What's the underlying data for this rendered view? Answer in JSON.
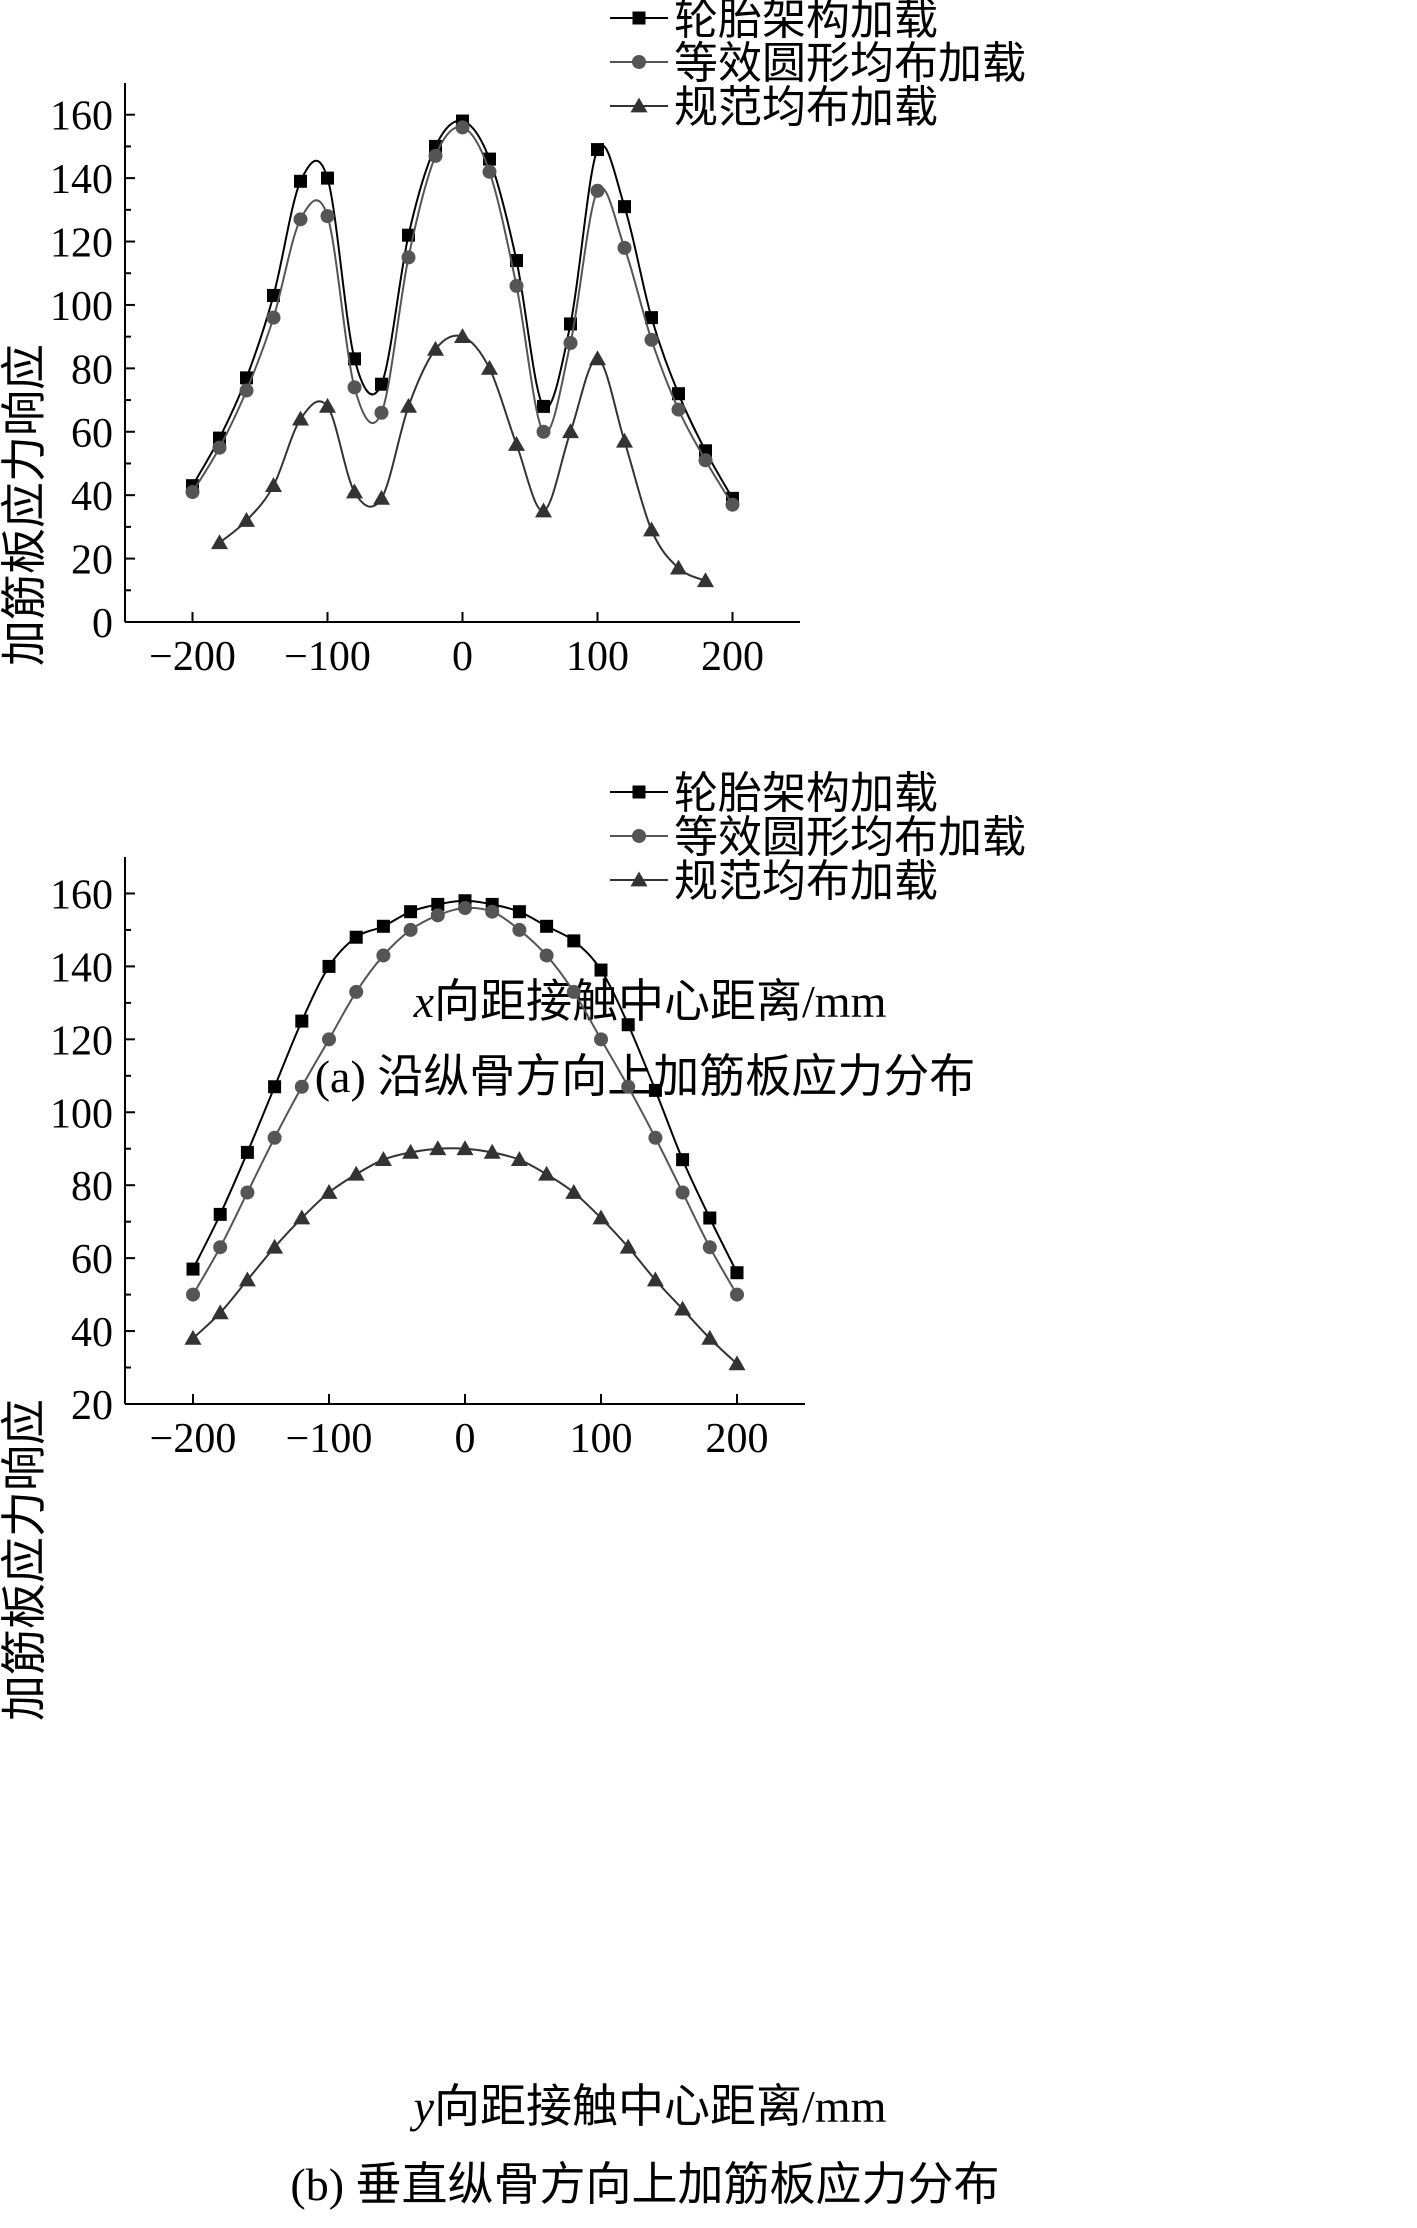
{
  "chart_data": [
    {
      "type": "line",
      "xlabel_var": "x",
      "xlabel_text": "向距接触中心距离/mm",
      "ylabel": "加筋板应力响应",
      "caption": "(a) 沿纵骨方向上加筋板应力分布",
      "xlim": [
        -250,
        250
      ],
      "ylim": [
        0,
        170
      ],
      "xticks": [
        -200,
        -100,
        0,
        100,
        200
      ],
      "yticks": [
        0,
        20,
        40,
        60,
        80,
        100,
        120,
        140,
        160
      ],
      "xtick_labels": [
        "−200",
        "−100",
        "0",
        "100",
        "200"
      ],
      "ytick_labels": [
        "0",
        "20",
        "40",
        "60",
        "80",
        "100",
        "120",
        "140",
        "160"
      ],
      "grid": false,
      "legend_position": "top-right",
      "series": [
        {
          "name": "轮胎架构加载",
          "marker": "square",
          "color": "#000000",
          "x": [
            -200,
            -180,
            -160,
            -140,
            -120,
            -100,
            -80,
            -60,
            -40,
            -20,
            0,
            20,
            40,
            60,
            80,
            100,
            120,
            140,
            160,
            180,
            200
          ],
          "y": [
            43,
            58,
            77,
            103,
            139,
            140,
            83,
            75,
            122,
            150,
            158,
            146,
            114,
            68,
            94,
            149,
            131,
            96,
            72,
            54,
            39
          ]
        },
        {
          "name": "等效圆形均布加载",
          "marker": "circle",
          "color": "#555555",
          "x": [
            -200,
            -180,
            -160,
            -140,
            -120,
            -100,
            -80,
            -60,
            -40,
            -20,
            0,
            20,
            40,
            60,
            80,
            100,
            120,
            140,
            160,
            180,
            200
          ],
          "y": [
            41,
            55,
            73,
            96,
            127,
            128,
            74,
            66,
            115,
            147,
            156,
            142,
            106,
            60,
            88,
            136,
            118,
            89,
            67,
            51,
            37
          ]
        },
        {
          "name": "规范均布加载",
          "marker": "triangle",
          "color": "#333333",
          "x": [
            -180,
            -160,
            -140,
            -120,
            -100,
            -80,
            -60,
            -40,
            -20,
            0,
            20,
            40,
            60,
            80,
            100,
            120,
            140,
            160,
            180
          ],
          "y": [
            25,
            32,
            43,
            64,
            68,
            41,
            39,
            68,
            86,
            90,
            80,
            56,
            35,
            60,
            83,
            57,
            29,
            17,
            13
          ]
        }
      ]
    },
    {
      "type": "line",
      "xlabel_var": "y",
      "xlabel_text": "向距接触中心距离/mm",
      "ylabel": "加筋板应力响应",
      "caption": "(b) 垂直纵骨方向上加筋板应力分布",
      "xlim": [
        -250,
        250
      ],
      "ylim": [
        20,
        170
      ],
      "xticks": [
        -200,
        -100,
        0,
        100,
        200
      ],
      "yticks": [
        20,
        40,
        60,
        80,
        100,
        120,
        140,
        160
      ],
      "xtick_labels": [
        "−200",
        "−100",
        "0",
        "100",
        "200"
      ],
      "ytick_labels": [
        "20",
        "40",
        "60",
        "80",
        "100",
        "120",
        "140",
        "160"
      ],
      "grid": false,
      "legend_position": "top-right",
      "series": [
        {
          "name": "轮胎架构加载",
          "marker": "square",
          "color": "#000000",
          "x": [
            -200,
            -180,
            -160,
            -140,
            -120,
            -100,
            -80,
            -60,
            -40,
            -20,
            0,
            20,
            40,
            60,
            80,
            100,
            120,
            140,
            160,
            180,
            200
          ],
          "y": [
            57,
            72,
            89,
            107,
            125,
            140,
            148,
            151,
            155,
            157,
            158,
            157,
            155,
            151,
            147,
            139,
            124,
            106,
            87,
            71,
            56
          ]
        },
        {
          "name": "等效圆形均布加载",
          "marker": "circle",
          "color": "#555555",
          "x": [
            -200,
            -180,
            -160,
            -140,
            -120,
            -100,
            -80,
            -60,
            -40,
            -20,
            0,
            20,
            40,
            60,
            80,
            100,
            120,
            140,
            160,
            180,
            200
          ],
          "y": [
            50,
            63,
            78,
            93,
            107,
            120,
            133,
            143,
            150,
            154,
            156,
            155,
            150,
            143,
            133,
            120,
            107,
            93,
            78,
            63,
            50
          ]
        },
        {
          "name": "规范均布加载",
          "marker": "triangle",
          "color": "#333333",
          "x": [
            -200,
            -180,
            -160,
            -140,
            -120,
            -100,
            -80,
            -60,
            -40,
            -20,
            0,
            20,
            40,
            60,
            80,
            100,
            120,
            140,
            160,
            180,
            200
          ],
          "y": [
            38,
            45,
            54,
            63,
            71,
            78,
            83,
            87,
            89,
            90,
            90,
            89,
            87,
            83,
            78,
            71,
            63,
            54,
            46,
            38,
            31
          ]
        }
      ]
    }
  ]
}
